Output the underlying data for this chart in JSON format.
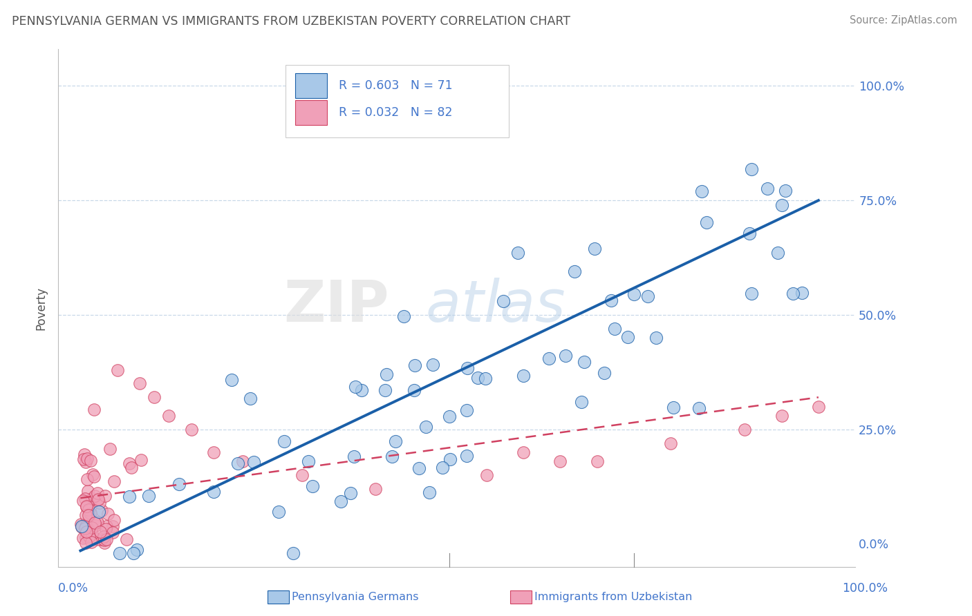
{
  "title": "PENNSYLVANIA GERMAN VS IMMIGRANTS FROM UZBEKISTAN POVERTY CORRELATION CHART",
  "source": "Source: ZipAtlas.com",
  "ylabel": "Poverty",
  "legend_blue_label": "Pennsylvania Germans",
  "legend_pink_label": "Immigrants from Uzbekistan",
  "blue_color": "#a8c8e8",
  "blue_line_color": "#1a5fa8",
  "pink_color": "#f0a0b8",
  "pink_line_color": "#d04060",
  "watermark_zip": "ZIP",
  "watermark_atlas": "atlas",
  "background_color": "#ffffff",
  "grid_color": "#c8d8e8",
  "title_color": "#555555",
  "axis_label_color": "#4477cc",
  "tick_label_color": "#4477cc",
  "source_color": "#888888"
}
